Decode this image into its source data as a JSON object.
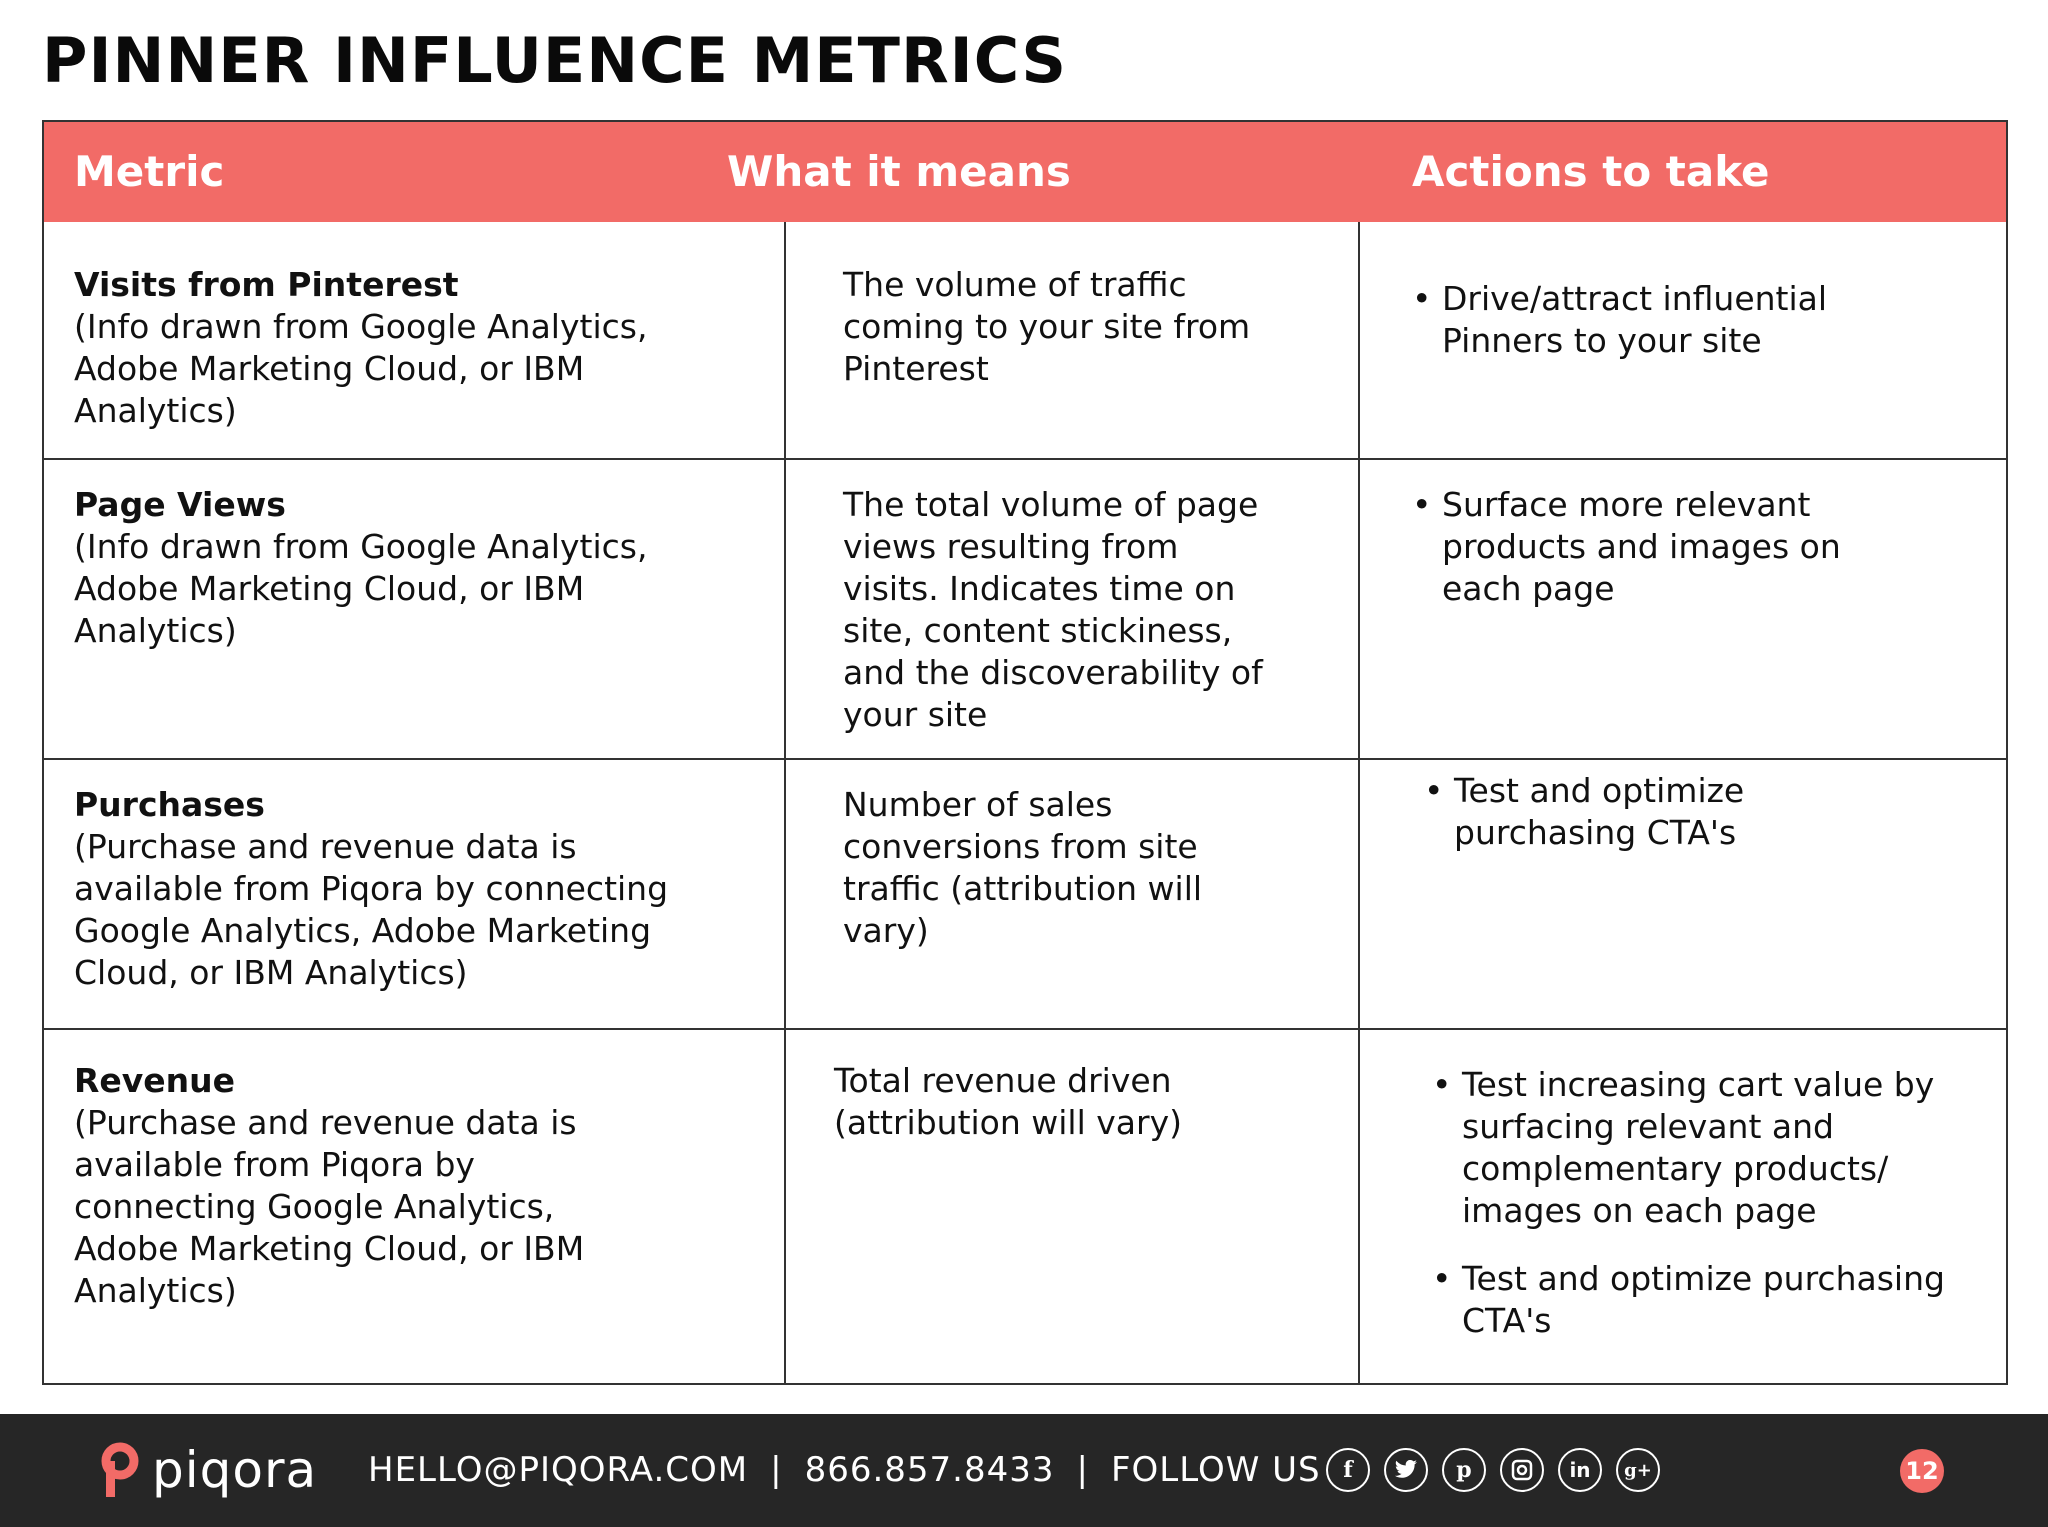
{
  "page": {
    "title": "PINNER INFLUENCE METRICS"
  },
  "table": {
    "headers": [
      "Metric",
      "What it means",
      "Actions to take"
    ],
    "rows": [
      {
        "metric_title": "Visits from Pinterest",
        "metric_note": "(Info drawn from Google Analytics,\nAdobe Marketing Cloud, or IBM\nAnalytics)",
        "meaning": "The volume of traffic\ncoming to your site from\nPinterest",
        "actions": [
          "Drive/attract influential\nPinners to your site"
        ]
      },
      {
        "metric_title": "Page Views",
        "metric_note": "(Info drawn from Google Analytics,\nAdobe Marketing Cloud, or IBM\nAnalytics)",
        "meaning": "The total volume of page\nviews resulting from\nvisits. Indicates time on\nsite, content stickiness,\nand the discoverability of\nyour site",
        "actions": [
          "Surface more relevant\nproducts and images on\neach page"
        ]
      },
      {
        "metric_title": "Purchases",
        "metric_note": "(Purchase and revenue data is\navailable from Piqora by connecting\nGoogle Analytics, Adobe Marketing\nCloud, or IBM Analytics)",
        "meaning": "Number of sales\nconversions from site\ntraffic (attribution will\nvary)",
        "actions": [
          "Test and optimize\npurchasing CTA's"
        ]
      },
      {
        "metric_title": "Revenue",
        "metric_note": "(Purchase and revenue data is\navailable from Piqora by\nconnecting Google Analytics,\nAdobe Marketing Cloud, or IBM\nAnalytics)",
        "meaning": "Total revenue driven\n(attribution will vary)",
        "actions": [
          "Test increasing cart value by\nsurfacing relevant and\ncomplementary products/\nimages on each page",
          "Test and optimize purchasing\nCTA's"
        ]
      }
    ]
  },
  "footer": {
    "brand": "piqora",
    "email": "HELLO@PIQORA.COM",
    "separator": "|",
    "phone": "866.857.8433",
    "follow": "FOLLOW US",
    "social_icons": [
      "facebook-icon",
      "twitter-icon",
      "pinterest-icon",
      "instagram-icon",
      "linkedin-icon",
      "google-plus-icon"
    ],
    "page_number": "12"
  },
  "colors": {
    "accent": "#f26b67",
    "footer_bg": "#262626",
    "text": "#111111"
  }
}
